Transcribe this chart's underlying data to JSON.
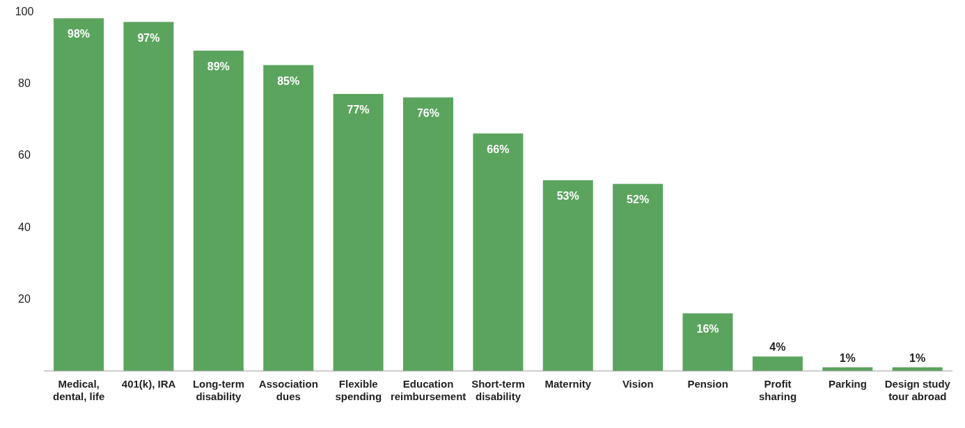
{
  "chart_data": {
    "type": "bar",
    "categories": [
      "Medical, dental, life",
      "401(k), IRA",
      "Long-term disability",
      "Association dues",
      "Flexible spending",
      "Education reimbursement",
      "Short-term disability",
      "Maternity",
      "Vision",
      "Pension",
      "Profit sharing",
      "Parking",
      "Design study tour abroad"
    ],
    "values": [
      98,
      97,
      89,
      85,
      77,
      76,
      66,
      53,
      52,
      16,
      4,
      1,
      1
    ],
    "value_labels": [
      "98%",
      "97%",
      "89%",
      "85%",
      "77%",
      "76%",
      "66%",
      "53%",
      "52%",
      "16%",
      "4%",
      "1%",
      "1%"
    ],
    "color": "#5ba45e",
    "ylim": [
      0,
      100
    ],
    "yticks": [
      20,
      40,
      60,
      80,
      100
    ],
    "grid": false,
    "legend": false
  }
}
